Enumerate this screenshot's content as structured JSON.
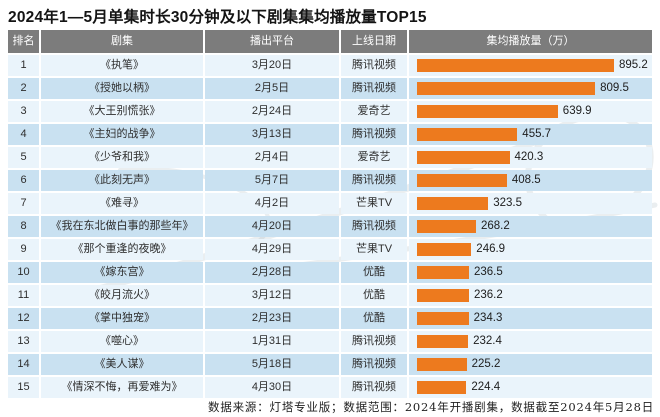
{
  "title": "2024年1—5月单集时长30分钟及以下剧集集均播放量TOP15",
  "footer": "数据来源：灯塔专业版；数据范围：2024年开播剧集，数据截至2024年5月28日",
  "colors": {
    "header_bg": "#7c7c7c",
    "header_text": "#ffffff",
    "row_light": "#eaf4fb",
    "row_dark": "#c9e1f1",
    "bar": "#ed7a1e"
  },
  "table": {
    "headers": [
      "排名",
      "剧集",
      "播出平台",
      "上线日期",
      "集均播放量（万）"
    ],
    "rows": [
      {
        "rank": "1",
        "title": "《执笔》",
        "date": "3月20日",
        "platform": "腾讯视频",
        "value": "895.2"
      },
      {
        "rank": "2",
        "title": "《授她以柄》",
        "date": "2月5日",
        "platform": "腾讯视频",
        "value": "809.5"
      },
      {
        "rank": "3",
        "title": "《大王别慌张》",
        "date": "2月24日",
        "platform": "爱奇艺",
        "value": "639.9"
      },
      {
        "rank": "4",
        "title": "《主妇的战争》",
        "date": "3月13日",
        "platform": "腾讯视频",
        "value": "455.7"
      },
      {
        "rank": "5",
        "title": "《少爷和我》",
        "date": "2月4日",
        "platform": "爱奇艺",
        "value": "420.3"
      },
      {
        "rank": "6",
        "title": "《此刻无声》",
        "date": "5月7日",
        "platform": "腾讯视频",
        "value": "408.5"
      },
      {
        "rank": "7",
        "title": "《难寻》",
        "date": "4月2日",
        "platform": "芒果TV",
        "value": "323.5"
      },
      {
        "rank": "8",
        "title": "《我在东北做白事的那些年》",
        "date": "4月20日",
        "platform": "腾讯视频",
        "value": "268.2"
      },
      {
        "rank": "9",
        "title": "《那个重逢的夜晚》",
        "date": "4月29日",
        "platform": "芒果TV",
        "value": "246.9"
      },
      {
        "rank": "10",
        "title": "《嫁东宫》",
        "date": "2月28日",
        "platform": "优酷",
        "value": "236.5"
      },
      {
        "rank": "11",
        "title": "《皎月流火》",
        "date": "3月12日",
        "platform": "优酷",
        "value": "236.2"
      },
      {
        "rank": "12",
        "title": "《掌中独宠》",
        "date": "2月23日",
        "platform": "优酷",
        "value": "234.3"
      },
      {
        "rank": "13",
        "title": "《噬心》",
        "date": "1月31日",
        "platform": "腾讯视频",
        "value": "232.4"
      },
      {
        "rank": "14",
        "title": "《美人谋》",
        "date": "5月18日",
        "platform": "腾讯视频",
        "value": "225.2"
      },
      {
        "rank": "15",
        "title": "《情深不悔，再爱难为》",
        "date": "4月30日",
        "platform": "腾讯视频",
        "value": "224.4"
      }
    ]
  },
  "chart_data": {
    "type": "bar",
    "orientation": "horizontal",
    "title": "2024年1—5月单集时长30分钟及以下剧集集均播放量TOP15",
    "categories": [
      "《执笔》",
      "《授她以柄》",
      "《大王别慌张》",
      "《主妇的战争》",
      "《少爷和我》",
      "《此刻无声》",
      "《难寻》",
      "《我在东北做白事的那些年》",
      "《那个重逢的夜晚》",
      "《嫁东宫》",
      "《皎月流火》",
      "《掌中独宠》",
      "《噬心》",
      "《美人谋》",
      "《情深不悔，再爱难为》"
    ],
    "values": [
      895.2,
      809.5,
      639.9,
      455.7,
      420.3,
      408.5,
      323.5,
      268.2,
      246.9,
      236.5,
      236.2,
      234.3,
      232.4,
      225.2,
      224.4
    ],
    "value_label": "集均播放量（万）",
    "xlabel": "集均播放量（万）",
    "ylabel": "剧集",
    "xlim": [
      0,
      1000
    ],
    "grid": false,
    "legend": "none",
    "bar_color": "#ed7a1e",
    "data_labels": true
  }
}
